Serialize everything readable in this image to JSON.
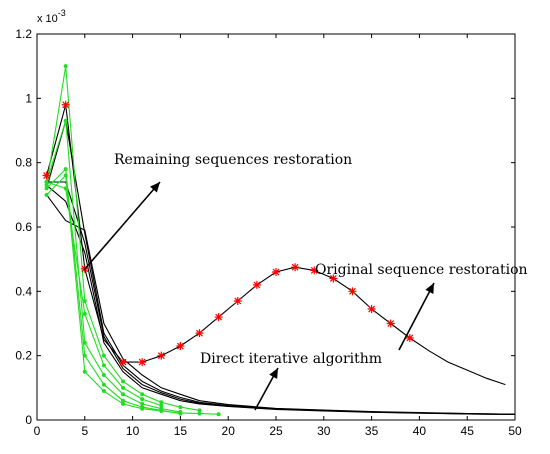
{
  "chart_data": {
    "type": "line",
    "y_exponent_label": "x 10",
    "y_exponent_power": "-3",
    "xlim": [
      0,
      50
    ],
    "ylim": [
      0,
      1.2
    ],
    "x_ticks": [
      "0",
      "5",
      "10",
      "15",
      "20",
      "25",
      "30",
      "35",
      "40",
      "45",
      "50"
    ],
    "y_ticks": [
      "0",
      "0.2",
      "0.4",
      "0.6",
      "0.8",
      "1",
      "1.2"
    ],
    "grid": false,
    "annotations": [
      {
        "text": "Remaining sequences restoration"
      },
      {
        "text": "Original sequence restoration"
      },
      {
        "text": "Direct iterative algorithm"
      }
    ],
    "series": [
      {
        "role": "original-sequence-curve",
        "color": "#000000",
        "marker": "none",
        "x": [
          1,
          3,
          5,
          7,
          9,
          11,
          13,
          15,
          17,
          19,
          21,
          23,
          25,
          27,
          29,
          31,
          33,
          35,
          37,
          39,
          41,
          43,
          45,
          47,
          49
        ],
        "y": [
          0.76,
          0.98,
          0.47,
          0.25,
          0.18,
          0.18,
          0.2,
          0.23,
          0.27,
          0.32,
          0.37,
          0.42,
          0.46,
          0.475,
          0.465,
          0.44,
          0.4,
          0.345,
          0.3,
          0.255,
          0.215,
          0.18,
          0.155,
          0.13,
          0.11
        ]
      },
      {
        "role": "original-sequence-markers",
        "color": "#ff0000",
        "marker": "star",
        "x": [
          1,
          3,
          5,
          9,
          11,
          13,
          15,
          17,
          19,
          21,
          23,
          25,
          27,
          29,
          31,
          33,
          35,
          37,
          39
        ],
        "y": [
          0.76,
          0.98,
          0.47,
          0.18,
          0.18,
          0.2,
          0.23,
          0.27,
          0.32,
          0.37,
          0.42,
          0.46,
          0.475,
          0.465,
          0.44,
          0.4,
          0.345,
          0.3,
          0.255
        ]
      },
      {
        "role": "remaining-1",
        "color": "#000000",
        "marker": "none",
        "x": [
          1,
          3,
          5,
          7,
          9,
          11,
          13,
          15,
          17,
          20,
          25,
          30,
          35,
          40,
          45,
          50
        ],
        "y": [
          0.72,
          0.93,
          0.58,
          0.27,
          0.17,
          0.12,
          0.09,
          0.07,
          0.055,
          0.045,
          0.035,
          0.03,
          0.025,
          0.022,
          0.02,
          0.018
        ]
      },
      {
        "role": "remaining-2",
        "color": "#000000",
        "marker": "none",
        "x": [
          1,
          3,
          5,
          7,
          9,
          11,
          13,
          15,
          17,
          20,
          25,
          30,
          35,
          40,
          45,
          50
        ],
        "y": [
          0.7,
          0.62,
          0.59,
          0.3,
          0.19,
          0.14,
          0.1,
          0.08,
          0.06,
          0.048,
          0.036,
          0.031,
          0.026,
          0.023,
          0.02,
          0.018
        ]
      },
      {
        "role": "remaining-3",
        "color": "#000000",
        "marker": "none",
        "x": [
          1,
          3,
          5,
          7,
          9,
          11,
          13,
          15,
          17,
          20,
          25,
          30,
          35,
          40,
          45,
          50
        ],
        "y": [
          0.74,
          0.74,
          0.55,
          0.26,
          0.16,
          0.11,
          0.085,
          0.065,
          0.052,
          0.043,
          0.034,
          0.029,
          0.025,
          0.022,
          0.019,
          0.017
        ]
      },
      {
        "role": "remaining-4",
        "color": "#000000",
        "marker": "none",
        "x": [
          1,
          3,
          5,
          7,
          9,
          11,
          13,
          15,
          17,
          20,
          25,
          30,
          35,
          40,
          45,
          50
        ],
        "y": [
          0.73,
          0.68,
          0.52,
          0.24,
          0.15,
          0.1,
          0.08,
          0.06,
          0.05,
          0.042,
          0.033,
          0.028,
          0.024,
          0.021,
          0.019,
          0.017
        ]
      },
      {
        "role": "direct-iterative-1",
        "color": "#22dd22",
        "marker": "dot",
        "x": [
          1,
          3,
          5,
          7,
          9,
          11,
          13,
          15,
          17
        ],
        "y": [
          0.73,
          1.1,
          0.37,
          0.2,
          0.12,
          0.08,
          0.055,
          0.04,
          0.03
        ]
      },
      {
        "role": "direct-iterative-2",
        "color": "#22dd22",
        "marker": "dot",
        "x": [
          1,
          3,
          5,
          7,
          9,
          11,
          13,
          15
        ],
        "y": [
          0.74,
          0.93,
          0.24,
          0.14,
          0.08,
          0.05,
          0.035,
          0.025
        ]
      },
      {
        "role": "direct-iterative-3",
        "color": "#22dd22",
        "marker": "dot",
        "x": [
          1,
          3,
          5,
          7,
          9,
          11,
          13,
          15
        ],
        "y": [
          0.72,
          0.78,
          0.2,
          0.11,
          0.06,
          0.04,
          0.03,
          0.02
        ]
      },
      {
        "role": "direct-iterative-4",
        "color": "#22dd22",
        "marker": "dot",
        "x": [
          1,
          3,
          5,
          7,
          9,
          11,
          13,
          15,
          17,
          19
        ],
        "y": [
          0.7,
          0.76,
          0.15,
          0.09,
          0.05,
          0.035,
          0.028,
          0.022,
          0.02,
          0.018
        ]
      },
      {
        "role": "direct-iterative-5",
        "color": "#22dd22",
        "marker": "dot",
        "x": [
          1,
          3,
          5,
          7,
          9,
          11,
          13
        ],
        "y": [
          0.74,
          0.72,
          0.33,
          0.17,
          0.1,
          0.065,
          0.045
        ]
      }
    ]
  }
}
